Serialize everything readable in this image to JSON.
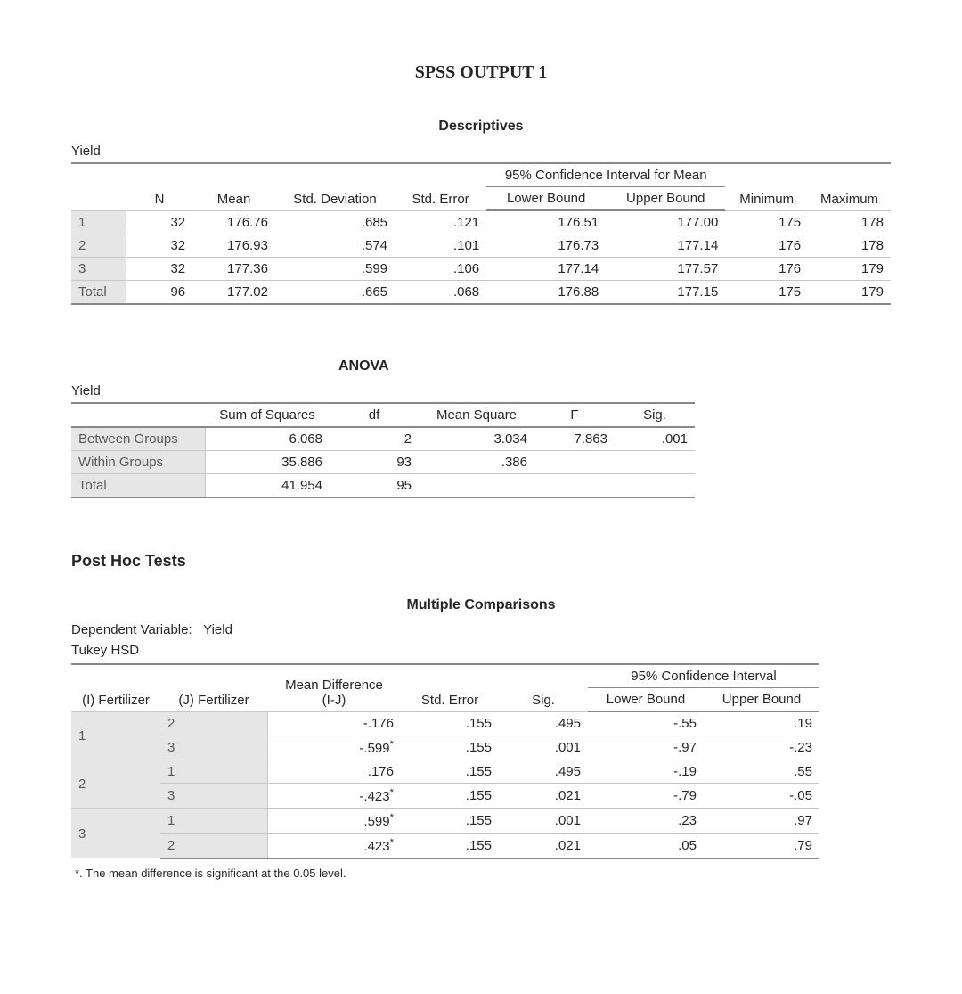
{
  "main_title": "SPSS OUTPUT 1",
  "descriptives": {
    "title": "Descriptives",
    "variable": "Yield",
    "headers": {
      "blank": "",
      "n": "N",
      "mean": "Mean",
      "std_dev": "Std. Deviation",
      "std_err": "Std. Error",
      "ci_title": "95% Confidence Interval for Mean",
      "lower": "Lower Bound",
      "upper": "Upper Bound",
      "min": "Minimum",
      "max": "Maximum"
    },
    "rows": [
      {
        "label": "1",
        "n": "32",
        "mean": "176.76",
        "std": ".685",
        "se": ".121",
        "lb": "176.51",
        "ub": "177.00",
        "min": "175",
        "max": "178"
      },
      {
        "label": "2",
        "n": "32",
        "mean": "176.93",
        "std": ".574",
        "se": ".101",
        "lb": "176.73",
        "ub": "177.14",
        "min": "176",
        "max": "178"
      },
      {
        "label": "3",
        "n": "32",
        "mean": "177.36",
        "std": ".599",
        "se": ".106",
        "lb": "177.14",
        "ub": "177.57",
        "min": "176",
        "max": "179"
      },
      {
        "label": "Total",
        "n": "96",
        "mean": "177.02",
        "std": ".665",
        "se": ".068",
        "lb": "176.88",
        "ub": "177.15",
        "min": "175",
        "max": "179"
      }
    ]
  },
  "anova": {
    "title": "ANOVA",
    "variable": "Yield",
    "headers": {
      "blank": "",
      "ss": "Sum of Squares",
      "df": "df",
      "ms": "Mean Square",
      "f": "F",
      "sig": "Sig."
    },
    "rows": [
      {
        "label": "Between Groups",
        "ss": "6.068",
        "df": "2",
        "ms": "3.034",
        "f": "7.863",
        "sig": ".001"
      },
      {
        "label": "Within Groups",
        "ss": "35.886",
        "df": "93",
        "ms": ".386",
        "f": "",
        "sig": ""
      },
      {
        "label": "Total",
        "ss": "41.954",
        "df": "95",
        "ms": "",
        "f": "",
        "sig": ""
      }
    ]
  },
  "posthoc": {
    "section_title": "Post Hoc Tests",
    "table_title": "Multiple Comparisons",
    "dep_var_label": "Dependent Variable:   Yield",
    "method": "Tukey HSD",
    "headers": {
      "i": "(I) Fertilizer",
      "j": "(J) Fertilizer",
      "md_top": "Mean Difference",
      "md_bot": "(I-J)",
      "se": "Std. Error",
      "sig": "Sig.",
      "ci_title": "95% Confidence Interval",
      "lower": "Lower Bound",
      "upper": "Upper Bound"
    },
    "rows": [
      {
        "i": "1",
        "j": "2",
        "md": "-.176",
        "star": false,
        "se": ".155",
        "sig": ".495",
        "lb": "-.55",
        "ub": ".19"
      },
      {
        "i": "",
        "j": "3",
        "md": "-.599",
        "star": true,
        "se": ".155",
        "sig": ".001",
        "lb": "-.97",
        "ub": "-.23"
      },
      {
        "i": "2",
        "j": "1",
        "md": ".176",
        "star": false,
        "se": ".155",
        "sig": ".495",
        "lb": "-.19",
        "ub": ".55"
      },
      {
        "i": "",
        "j": "3",
        "md": "-.423",
        "star": true,
        "se": ".155",
        "sig": ".021",
        "lb": "-.79",
        "ub": "-.05"
      },
      {
        "i": "3",
        "j": "1",
        "md": ".599",
        "star": true,
        "se": ".155",
        "sig": ".001",
        "lb": ".23",
        "ub": ".97"
      },
      {
        "i": "",
        "j": "2",
        "md": ".423",
        "star": true,
        "se": ".155",
        "sig": ".021",
        "lb": ".05",
        "ub": ".79"
      }
    ],
    "footnote": "*. The mean difference is significant at the 0.05 level."
  },
  "style": {
    "row_label_bg": "#e6e6e6",
    "border_heavy": "#888888",
    "border_light": "#c7c7c7",
    "text_color": "#262626",
    "muted_text": "#595959",
    "base_font_size": 15
  }
}
